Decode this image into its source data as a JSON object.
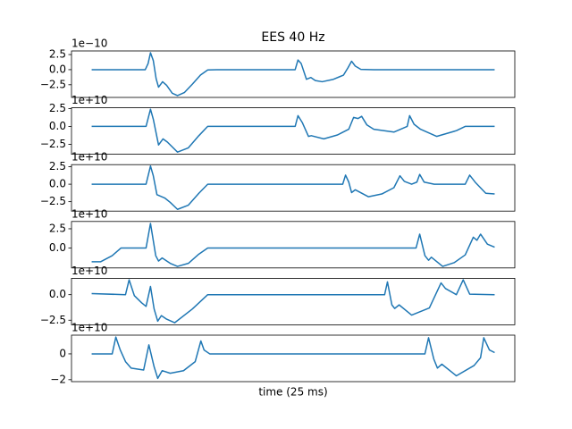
{
  "chart_data": [
    {
      "type": "line",
      "title": "EES 40 Hz",
      "offset_label": "1e−10",
      "xlim": [
        -5,
        105
      ],
      "ylim": [
        -4.6,
        3.1
      ],
      "yticks": [
        {
          "value": -2.5,
          "label": "−2.5"
        },
        {
          "value": 0,
          "label": "0.0"
        },
        2.5
      ],
      "x": [
        0,
        13.3,
        14,
        14.6,
        15.3,
        16,
        16.6,
        17.6,
        18.6,
        20,
        21.3,
        23,
        25,
        27,
        28.8,
        31,
        50.5,
        51.2,
        52,
        53.3,
        54.4,
        55.5,
        57.2,
        60,
        62.5,
        63.6,
        64.5,
        65.4,
        66.8,
        70,
        100
      ],
      "series": [
        {
          "color": "#1f77b4",
          "values": [
            0,
            0,
            1.0,
            2.8,
            1.5,
            -1.5,
            -2.9,
            -2.0,
            -2.6,
            -3.9,
            -4.3,
            -3.8,
            -2.4,
            -0.9,
            -0.05,
            0,
            0,
            1.6,
            1.0,
            -1.6,
            -1.3,
            -1.8,
            -2.0,
            -1.6,
            -0.9,
            0.3,
            1.4,
            0.6,
            0.05,
            0,
            0
          ]
        }
      ]
    },
    {
      "type": "line",
      "offset_label": "1e+10",
      "xlim": [
        -5,
        105
      ],
      "ylim": [
        -3.9,
        2.6
      ],
      "yticks": [
        {
          "value": -2.5,
          "label": "−2.5"
        },
        {
          "value": 0,
          "label": "0.0"
        },
        2.5
      ],
      "x": [
        0,
        13.5,
        14.6,
        15.3,
        16.6,
        17.7,
        18.8,
        21.3,
        24,
        26.6,
        28.8,
        50.5,
        51.2,
        52.3,
        53.8,
        54.5,
        57.6,
        61,
        63.8,
        65,
        66.1,
        67,
        68.3,
        70,
        75,
        78.3,
        78.9,
        80,
        81.6,
        85.6,
        90.5,
        92.7,
        100
      ],
      "series": [
        {
          "color": "#1f77b4",
          "values": [
            0,
            0,
            2.4,
            1.0,
            -2.6,
            -1.75,
            -2.2,
            -3.6,
            -3.0,
            -1.3,
            0,
            0,
            1.5,
            0.5,
            -1.4,
            -1.3,
            -1.75,
            -1.2,
            -0.4,
            1.25,
            1.1,
            1.4,
            0.2,
            -0.4,
            -0.8,
            0,
            1.5,
            0.3,
            -0.4,
            -1.4,
            -0.6,
            0,
            0
          ]
        }
      ]
    },
    {
      "type": "line",
      "offset_label": "1e+10",
      "xlim": [
        -5,
        105
      ],
      "ylim": [
        -3.85,
        2.8
      ],
      "yticks": [
        {
          "value": -2.5,
          "label": "−2.5"
        },
        {
          "value": 0,
          "label": "0.0"
        },
        2.5
      ],
      "x": [
        0,
        13.5,
        14.6,
        15.3,
        16.2,
        18.2,
        19.5,
        21.3,
        24,
        26.6,
        28.8,
        62.3,
        63,
        63.8,
        64.5,
        65.4,
        68.7,
        72,
        75,
        76.5,
        77.6,
        79.4,
        80.7,
        81.4,
        82.5,
        85,
        92.7,
        93.8,
        95.3,
        97.8,
        100
      ],
      "series": [
        {
          "color": "#1f77b4",
          "values": [
            0,
            0,
            2.6,
            1.2,
            -1.5,
            -2.0,
            -2.6,
            -3.6,
            -3.0,
            -1.3,
            0,
            0,
            1.3,
            0.3,
            -1.2,
            -0.8,
            -1.8,
            -1.4,
            -0.5,
            1.2,
            0.4,
            0,
            0.3,
            1.4,
            0.3,
            0,
            0,
            1.3,
            0.2,
            -1.3,
            -1.4
          ]
        }
      ]
    },
    {
      "type": "line",
      "offset_label": "1e+10",
      "xlim": [
        -5,
        105
      ],
      "ylim": [
        -2.6,
        3.45
      ],
      "yticks": [
        {
          "value": 0,
          "label": "0.0"
        },
        2.5
      ],
      "x": [
        0,
        2.2,
        5.1,
        7.3,
        13.5,
        14.6,
        15.9,
        16.6,
        17.5,
        19.5,
        21.3,
        24,
        26.6,
        28.8,
        80.5,
        81.4,
        82.7,
        83.6,
        84.3,
        87.1,
        90,
        92.7,
        94.7,
        95.6,
        96.5,
        98.2,
        100
      ],
      "series": [
        {
          "color": "#1f77b4",
          "values": [
            -1.8,
            -1.8,
            -1.0,
            0,
            0,
            3.2,
            -1.0,
            -1.7,
            -1.3,
            -2.0,
            -2.4,
            -2.0,
            -0.8,
            0,
            0,
            1.8,
            -1.0,
            -1.6,
            -1.2,
            -2.4,
            -1.9,
            -0.9,
            1.4,
            1.0,
            1.8,
            0.5,
            0.1
          ]
        }
      ]
    },
    {
      "type": "line",
      "offset_label": "1e+10",
      "xlim": [
        -5,
        105
      ],
      "ylim": [
        -2.95,
        1.6
      ],
      "yticks": [
        {
          "value": -2.5,
          "label": "−2.5"
        },
        {
          "value": 0,
          "label": "0.0"
        }
      ],
      "x": [
        0,
        8.4,
        9.3,
        10.6,
        12.4,
        13.5,
        14.6,
        15.5,
        16.4,
        17.3,
        18.6,
        20.6,
        25,
        28.8,
        72.7,
        73.4,
        74.5,
        75.2,
        76.3,
        79.4,
        83.8,
        86.7,
        87.8,
        90.5,
        92.2,
        93.8,
        100
      ],
      "series": [
        {
          "color": "#1f77b4",
          "values": [
            0.1,
            0,
            1.45,
            -0.1,
            -0.8,
            -1.15,
            0.8,
            -1.4,
            -2.6,
            -2.05,
            -2.4,
            -2.75,
            -1.4,
            0,
            0,
            1.25,
            -1.0,
            -1.35,
            -1.0,
            -2.0,
            -1.3,
            1.15,
            0.6,
            0,
            1.45,
            0.05,
            0
          ]
        }
      ]
    },
    {
      "type": "line",
      "offset_label": "1e+10",
      "xlabel": "time (25 ms)",
      "xlim": [
        -5,
        105
      ],
      "ylim": [
        -2.15,
        1.45
      ],
      "yticks": [
        {
          "value": -2,
          "label": "−2"
        },
        0
      ],
      "x": [
        0,
        5.1,
        6,
        7.1,
        8.4,
        9.8,
        12.9,
        14.2,
        15.5,
        16.4,
        17.5,
        19.5,
        22.8,
        25.7,
        27.1,
        27.9,
        29.3,
        82.7,
        83.6,
        84.9,
        85.8,
        86.9,
        90.5,
        94.9,
        96.5,
        97.3,
        98.7,
        100
      ],
      "series": [
        {
          "color": "#1f77b4",
          "values": [
            0,
            0,
            1.3,
            0.3,
            -0.6,
            -1.1,
            -1.25,
            0.7,
            -1.0,
            -1.9,
            -1.3,
            -1.5,
            -1.3,
            -0.6,
            1.0,
            0.3,
            0,
            0,
            1.25,
            -0.4,
            -1.1,
            -0.8,
            -1.7,
            -0.9,
            -0.3,
            1.25,
            0.3,
            0.1
          ]
        }
      ]
    }
  ]
}
